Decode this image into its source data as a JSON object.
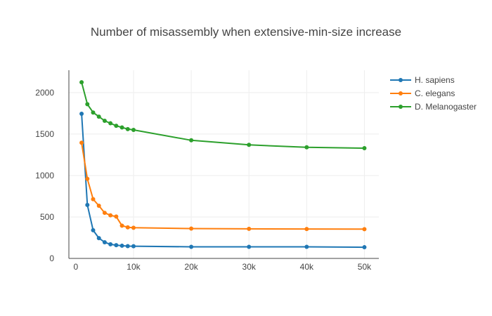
{
  "chart_data": {
    "type": "line",
    "title": "Number of misassembly when extensive-min-size increase",
    "xlabel": "",
    "ylabel": "",
    "xlim": [
      -1200,
      52500
    ],
    "ylim": [
      0,
      2270
    ],
    "x_ticks": [
      0,
      10000,
      20000,
      30000,
      40000,
      50000
    ],
    "x_tick_labels": [
      "0",
      "10k",
      "20k",
      "30k",
      "40k",
      "50k"
    ],
    "y_ticks": [
      0,
      500,
      1000,
      1500,
      2000
    ],
    "y_tick_labels": [
      "0",
      "500",
      "1000",
      "1500",
      "2000"
    ],
    "grid": true,
    "legend_position": "top-right",
    "x": [
      1000,
      2000,
      3000,
      4000,
      5000,
      6000,
      7000,
      8000,
      9000,
      10000,
      20000,
      30000,
      40000,
      50000
    ],
    "series": [
      {
        "name": "H. sapiens",
        "color": "#1f77b4",
        "values": [
          1745,
          645,
          340,
          245,
          195,
          170,
          160,
          153,
          148,
          147,
          140,
          140,
          140,
          135
        ]
      },
      {
        "name": "C. elegans",
        "color": "#ff7f0e",
        "values": [
          1395,
          960,
          715,
          635,
          550,
          520,
          505,
          395,
          375,
          370,
          360,
          357,
          355,
          353
        ]
      },
      {
        "name": "D. Melanogaster",
        "color": "#2ca02c",
        "values": [
          2125,
          1860,
          1760,
          1710,
          1660,
          1630,
          1600,
          1580,
          1560,
          1550,
          1425,
          1370,
          1340,
          1330
        ]
      }
    ]
  }
}
